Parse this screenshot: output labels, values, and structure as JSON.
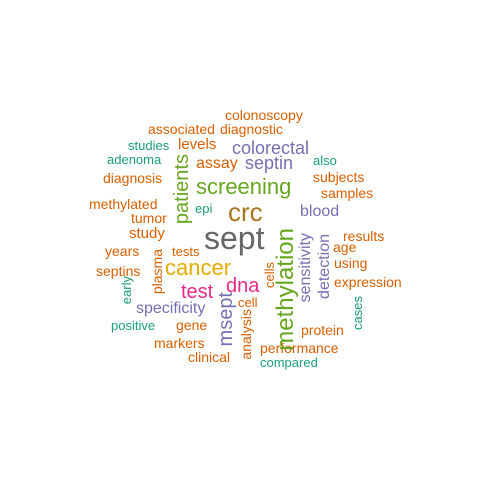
{
  "wordcloud": {
    "words": {
      "sept": "sept",
      "crc": "crc",
      "cancer": "cancer",
      "screening": "screening",
      "methylation": "methylation",
      "patients": "patients",
      "dna": "dna",
      "test": "test",
      "colorectal": "colorectal",
      "septin": "septin",
      "msept": "msept",
      "specificity": "specificity",
      "sensitivity": "sensitivity",
      "detection": "detection",
      "blood": "blood",
      "assay": "assay",
      "colonoscopy": "colonoscopy",
      "associated": "associated",
      "diagnostic": "diagnostic",
      "studies": "studies",
      "levels": "levels",
      "adenoma": "adenoma",
      "also": "also",
      "diagnosis": "diagnosis",
      "subjects": "subjects",
      "samples": "samples",
      "methylated": "methylated",
      "tumor": "tumor",
      "epi": "epi",
      "study": "study",
      "years": "years",
      "tests": "tests",
      "age": "age",
      "results": "results",
      "septins": "septins",
      "plasma": "plasma",
      "cells": "cells",
      "using": "using",
      "expression": "expression",
      "early": "early",
      "cell": "cell",
      "positive": "positive",
      "gene": "gene",
      "analysis": "analysis",
      "protein": "protein",
      "cases": "cases",
      "markers": "markers",
      "performance": "performance",
      "clinical": "clinical",
      "compared": "compared"
    },
    "palette": {
      "orange": "#d95f02",
      "teal": "#1b9e77",
      "purple": "#7570b3",
      "green": "#66a61e",
      "brown": "#a6761d",
      "gold": "#e6ab02",
      "pink": "#e7298a",
      "gray": "#666666"
    }
  }
}
